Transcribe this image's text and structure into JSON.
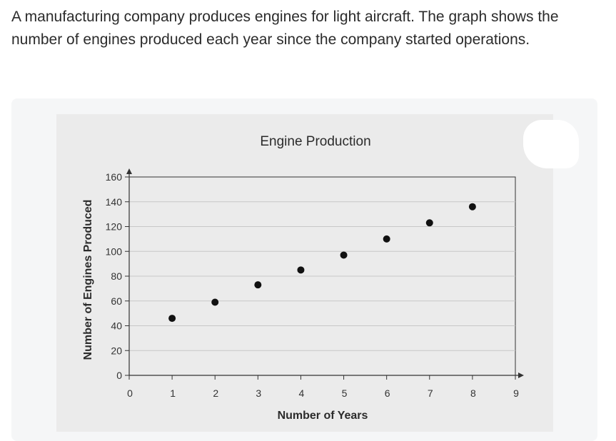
{
  "question": {
    "prompt": "A manufacturing company produces engines for light aircraft. The graph shows the number of engines produced each year since the company started operations."
  },
  "colors": {
    "point": "#111111",
    "grid": "#c8c8c8",
    "axis": "#333333",
    "plot_bg": "#ebebeb"
  },
  "chart_data": {
    "type": "scatter",
    "title": "Engine Production",
    "xlabel": "Number of Years",
    "ylabel": "Number of Engines Produced",
    "x": [
      1,
      2,
      3,
      4,
      5,
      6,
      7,
      8
    ],
    "y": [
      46,
      59,
      73,
      85,
      97,
      110,
      123,
      136
    ],
    "xlim": [
      0,
      9
    ],
    "ylim": [
      0,
      160
    ],
    "xticks": [
      0,
      1,
      2,
      3,
      4,
      5,
      6,
      7,
      8,
      9
    ],
    "yticks": [
      0,
      20,
      40,
      60,
      80,
      100,
      120,
      140,
      160
    ],
    "grid": true,
    "legend": null
  }
}
